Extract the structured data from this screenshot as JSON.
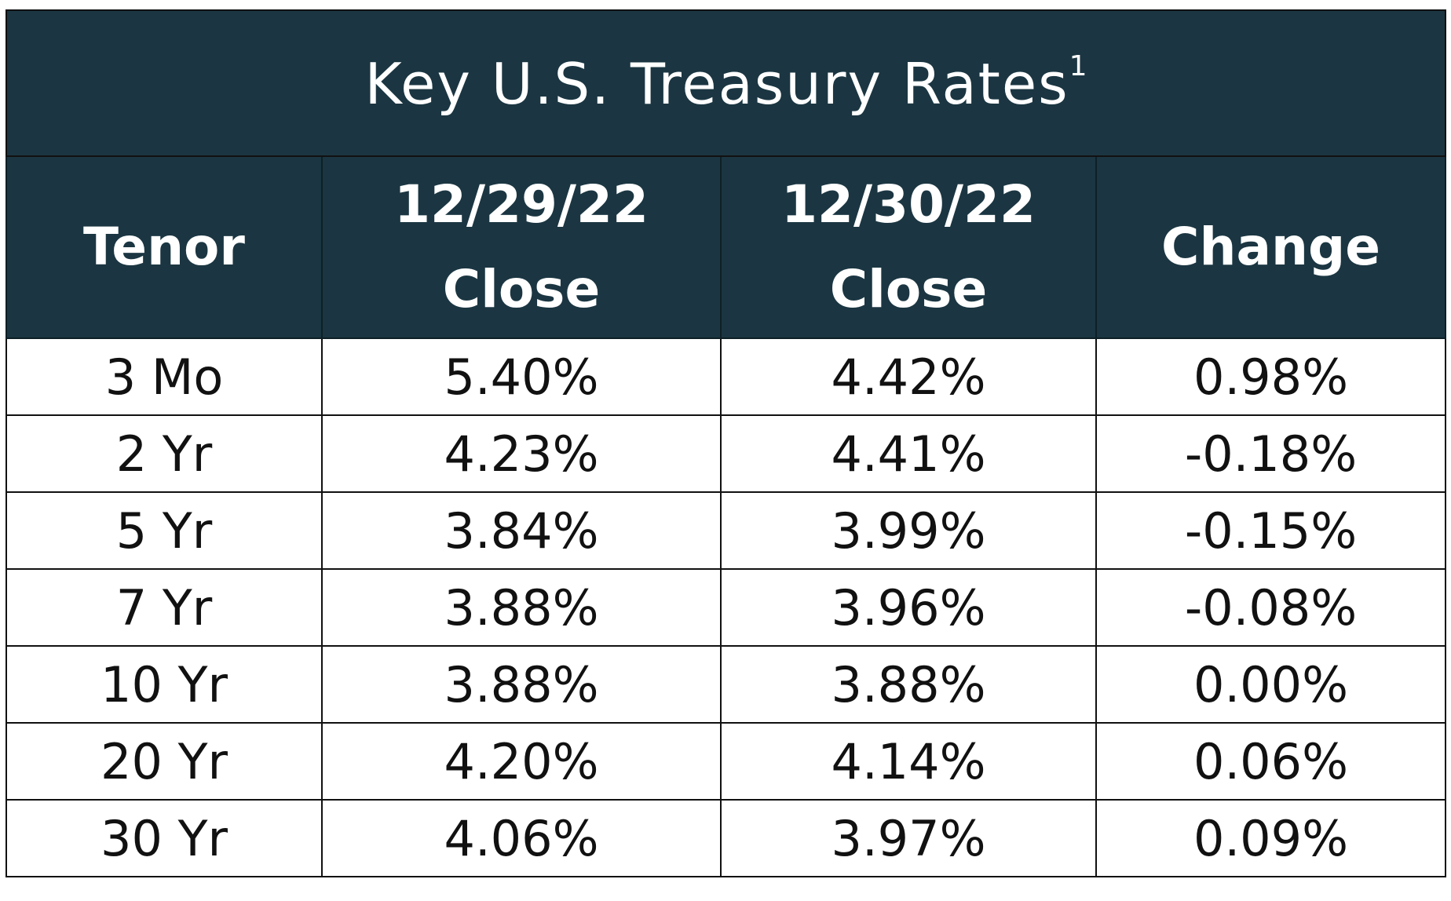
{
  "title": "Key U.S. Treasury Rates",
  "title_footnote": "1",
  "colors": {
    "header_bg": "#1b3642",
    "header_text": "#ffffff",
    "body_text": "#111111",
    "border": "#111111"
  },
  "columns": {
    "tenor": "Tenor",
    "prev_date": "12/29/22",
    "prev_label": "Close",
    "curr_date": "12/30/22",
    "curr_label": "Close",
    "change": "Change"
  },
  "rows": [
    {
      "tenor": "3 Mo",
      "prev": "5.40%",
      "curr": "4.42%",
      "change": "0.98%"
    },
    {
      "tenor": "2 Yr",
      "prev": "4.23%",
      "curr": "4.41%",
      "change": "-0.18%"
    },
    {
      "tenor": "5 Yr",
      "prev": "3.84%",
      "curr": "3.99%",
      "change": "-0.15%"
    },
    {
      "tenor": "7 Yr",
      "prev": "3.88%",
      "curr": "3.96%",
      "change": "-0.08%"
    },
    {
      "tenor": "10 Yr",
      "prev": "3.88%",
      "curr": "3.88%",
      "change": "0.00%"
    },
    {
      "tenor": "20 Yr",
      "prev": "4.20%",
      "curr": "4.14%",
      "change": "0.06%"
    },
    {
      "tenor": "30 Yr",
      "prev": "4.06%",
      "curr": "3.97%",
      "change": "0.09%"
    }
  ]
}
